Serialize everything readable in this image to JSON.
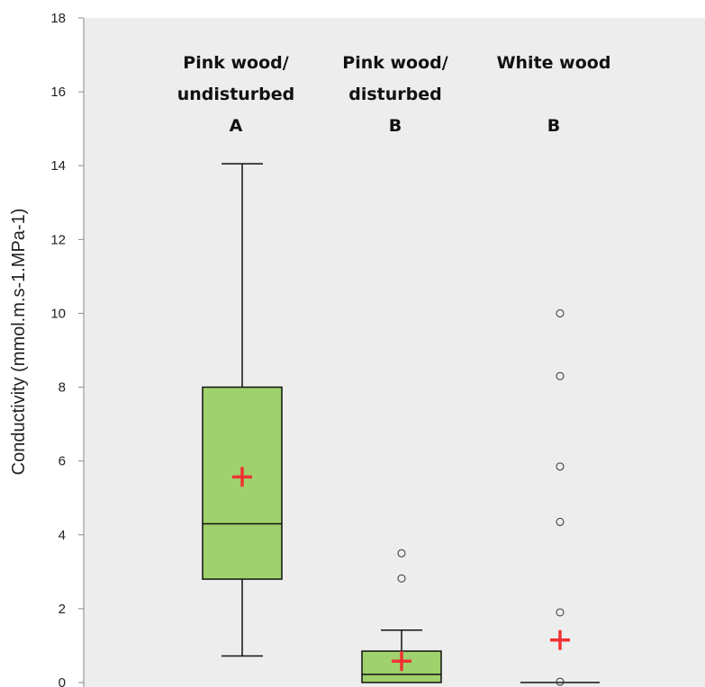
{
  "chart_data": {
    "type": "box",
    "ylabel": "Conductivity  (mmol.m.s-1.MPa-1)",
    "ylim": [
      0,
      18
    ],
    "yticks": [
      0,
      2,
      4,
      6,
      8,
      10,
      12,
      14,
      16,
      18
    ],
    "grid": false,
    "colors": {
      "plot_background": "#ededed",
      "box_fill": "#9fd16c",
      "box_stroke": "#111111",
      "mean_marker": "#ee3333",
      "axis": "#888888"
    },
    "groups": [
      {
        "label_lines": [
          "Pink wood/",
          "undisturbed"
        ],
        "letter": "A",
        "whisker_low": 0.72,
        "q1": 2.8,
        "median": 4.3,
        "q3": 8.0,
        "whisker_high": 14.05,
        "mean": 5.57,
        "outliers": []
      },
      {
        "label_lines": [
          "Pink wood/",
          "disturbed"
        ],
        "letter": "B",
        "whisker_low": 0,
        "q1": 0,
        "median": 0.22,
        "q3": 0.85,
        "whisker_high": 1.42,
        "mean": 0.58,
        "outliers": [
          2.82,
          3.5
        ]
      },
      {
        "label_lines": [
          "White wood"
        ],
        "letter": "B",
        "whisker_low": 0,
        "q1": 0,
        "median": 0,
        "q3": 0,
        "whisker_high": 0,
        "mean": 1.15,
        "outliers": [
          0.02,
          1.9,
          4.35,
          5.85,
          8.3,
          10.0
        ]
      }
    ]
  }
}
